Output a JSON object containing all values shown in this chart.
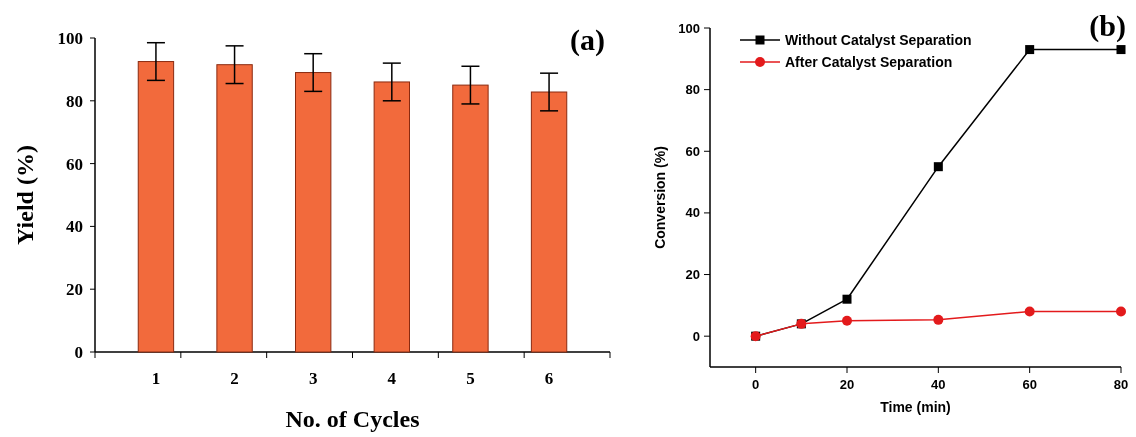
{
  "chart_data": [
    {
      "type": "bar",
      "annotations": [
        "(a)"
      ],
      "xlabel": "No. of  Cycles",
      "ylabel": "Yield (%)",
      "categories": [
        "1",
        "2",
        "3",
        "4",
        "5",
        "6"
      ],
      "values": [
        92.5,
        91.5,
        89,
        86,
        85,
        82.8
      ],
      "errors": [
        6,
        6,
        6,
        6,
        6,
        6
      ],
      "color": "#f26a3c",
      "ylim": [
        0,
        100
      ],
      "yticks": [
        0,
        20,
        40,
        60,
        80,
        100
      ]
    },
    {
      "type": "line",
      "annotations": [
        "(b)"
      ],
      "xlabel": "Time (min)",
      "ylabel": "Conversion (%)",
      "x": [
        0,
        10,
        20,
        40,
        60,
        80
      ],
      "series": [
        {
          "name": "Without Catalyst Separation",
          "color": "#000000",
          "values": [
            0,
            4,
            12,
            55,
            93,
            93
          ],
          "marker": "square"
        },
        {
          "name": "After Catalyst Separation",
          "color": "#e31a1c",
          "values": [
            0,
            4,
            5,
            5.3,
            8,
            8
          ],
          "marker": "circle"
        }
      ],
      "xlim": [
        -10,
        80
      ],
      "ylim": [
        -10,
        100
      ],
      "xticks": [
        0,
        20,
        40,
        60,
        80
      ],
      "yticks": [
        0,
        20,
        40,
        60,
        80,
        100
      ],
      "legend": "top left"
    }
  ]
}
